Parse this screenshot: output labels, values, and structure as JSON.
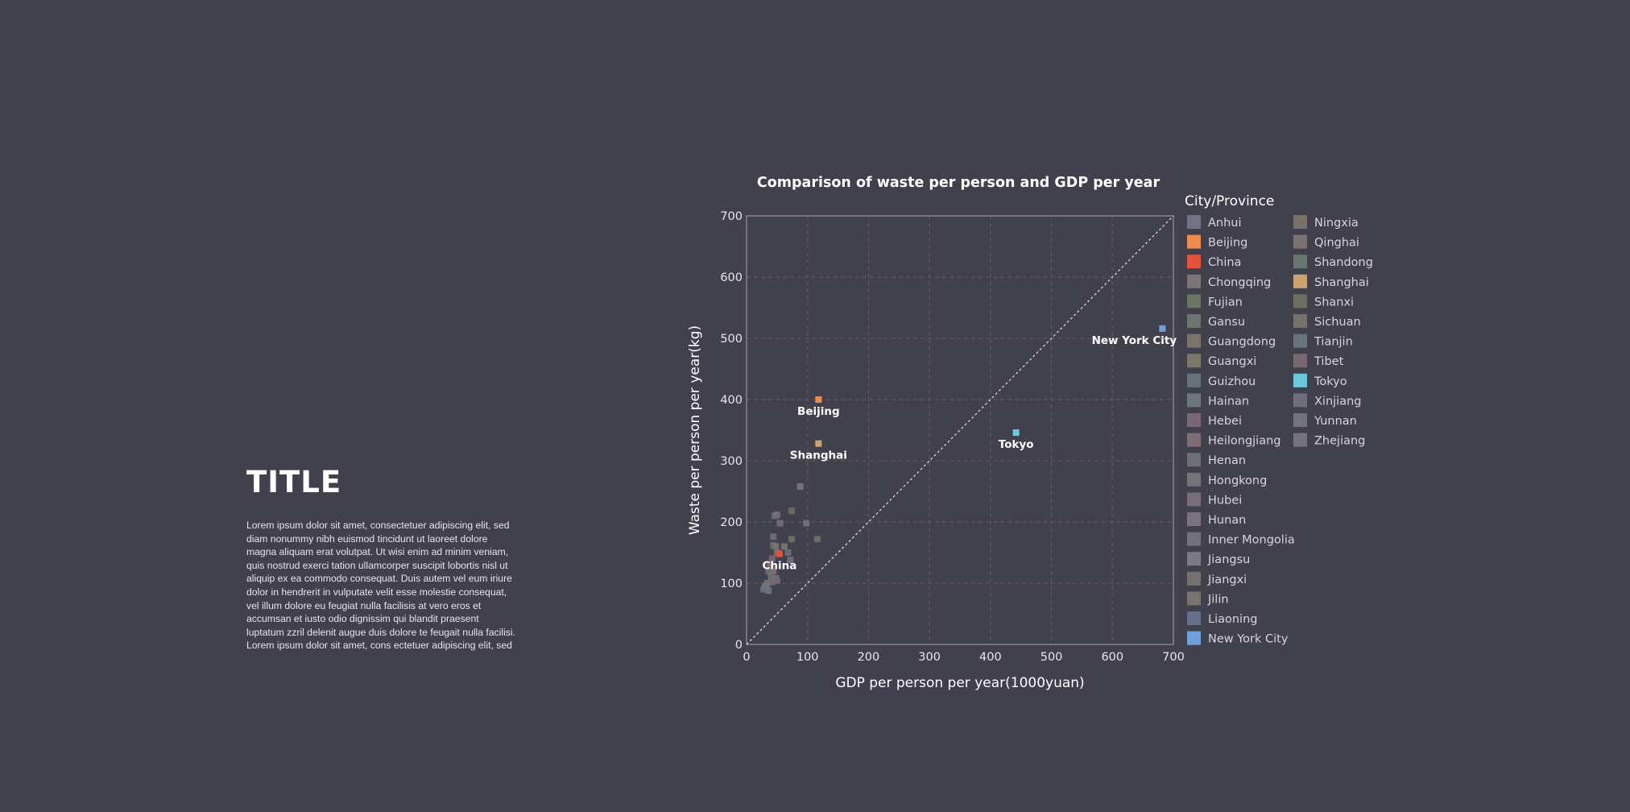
{
  "slide": {
    "title": "TITLE",
    "body": "Lorem ipsum dolor sit amet, consectetuer adipiscing elit, sed\ndiam nonummy nibh euismod tincidunt ut laoreet dolore\nmagna aliquam erat volutpat. Ut wisi enim ad minim veniam,\nquis nostrud exerci tation ullamcorper suscipit lobortis nisl ut\naliquip ex ea commodo consequat. Duis autem vel eum iriure\ndolor in hendrerit in vulputate velit esse molestie consequat,\nvel illum dolore eu feugiat nulla facilisis at vero eros et\naccumsan et iusto odio dignissim qui blandit praesent\nluptatum zzril delenit augue duis dolore te feugait nulla facilisi.\nLorem ipsum dolor sit amet, cons ectetuer adipiscing elit, sed"
  },
  "chart_data": {
    "type": "scatter",
    "title": "Comparison of waste per person and GDP per year",
    "xlabel": "GDP per person per year(1000yuan)",
    "ylabel": "Waste per person per year(kg)",
    "xlim": [
      0,
      700
    ],
    "ylim": [
      0,
      700
    ],
    "xticks": [
      0,
      100,
      200,
      300,
      400,
      500,
      600,
      700
    ],
    "yticks": [
      0,
      100,
      200,
      300,
      400,
      500,
      600,
      700
    ],
    "grid": true,
    "reference_line": "y = x",
    "legend_title": "City/Province",
    "legend_position": "right",
    "series": [
      {
        "name": "Anhui",
        "color": "#6f7385",
        "x": 36,
        "y": 88
      },
      {
        "name": "Beijing",
        "color": "#f08c4b",
        "x": 118,
        "y": 400,
        "label": "Beijing"
      },
      {
        "name": "China",
        "color": "#e4523a",
        "x": 54,
        "y": 148,
        "label": "China"
      },
      {
        "name": "Chongqing",
        "color": "#7b7576",
        "x": 48,
        "y": 160
      },
      {
        "name": "Fujian",
        "color": "#697465",
        "x": 74,
        "y": 172
      },
      {
        "name": "Gansu",
        "color": "#6d7570",
        "x": 30,
        "y": 94
      },
      {
        "name": "Guangdong",
        "color": "#7a746a",
        "x": 62,
        "y": 160
      },
      {
        "name": "Guangxi",
        "color": "#7b7769",
        "x": 34,
        "y": 100
      },
      {
        "name": "Guizhou",
        "color": "#65717b",
        "x": 28,
        "y": 90
      },
      {
        "name": "Hainan",
        "color": "#6c7579",
        "x": 40,
        "y": 110
      },
      {
        "name": "Hebei",
        "color": "#7a6773",
        "x": 42,
        "y": 140
      },
      {
        "name": "Heilongjiang",
        "color": "#7e6e74",
        "x": 38,
        "y": 130
      },
      {
        "name": "Henan",
        "color": "#6e6f76",
        "x": 42,
        "y": 102
      },
      {
        "name": "Hongkong",
        "color": "#737378",
        "x": 98,
        "y": 198
      },
      {
        "name": "Hubei",
        "color": "#7a6d7a",
        "x": 55,
        "y": 198
      },
      {
        "name": "Hunan",
        "color": "#7a7280",
        "x": 44,
        "y": 120
      },
      {
        "name": "Inner Mongolia",
        "color": "#75707f",
        "x": 72,
        "y": 138
      },
      {
        "name": "Jiangsu",
        "color": "#7c7984",
        "x": 88,
        "y": 258
      },
      {
        "name": "Jiangxi",
        "color": "#74716f",
        "x": 36,
        "y": 120
      },
      {
        "name": "Jilin",
        "color": "#767371",
        "x": 50,
        "y": 150
      },
      {
        "name": "Liaoning",
        "color": "#64708a",
        "x": 46,
        "y": 210
      },
      {
        "name": "New York City",
        "color": "#70a0da",
        "x": 682,
        "y": 516,
        "label": "New York City"
      },
      {
        "name": "Ningxia",
        "color": "#7a6f6a",
        "x": 44,
        "y": 162
      },
      {
        "name": "Qinghai",
        "color": "#7a7271",
        "x": 48,
        "y": 108
      },
      {
        "name": "Shandong",
        "color": "#687670",
        "x": 116,
        "y": 172
      },
      {
        "name": "Shanghai",
        "color": "#c9a46e",
        "x": 118,
        "y": 328,
        "label": "Shanghai"
      },
      {
        "name": "Shanxi",
        "color": "#6e6f60",
        "x": 74,
        "y": 218
      },
      {
        "name": "Sichuan",
        "color": "#76716b",
        "x": 40,
        "y": 128
      },
      {
        "name": "Tianjin",
        "color": "#68747a",
        "x": 68,
        "y": 150
      },
      {
        "name": "Tibet",
        "color": "#796670",
        "x": 50,
        "y": 104
      },
      {
        "name": "Tokyo",
        "color": "#6cc7d8",
        "x": 442,
        "y": 346,
        "label": "Tokyo"
      },
      {
        "name": "Xinjiang",
        "color": "#6e6d7b",
        "x": 44,
        "y": 176
      },
      {
        "name": "Yunnan",
        "color": "#71747c",
        "x": 32,
        "y": 96
      },
      {
        "name": "Zhejiang",
        "color": "#77707d",
        "x": 50,
        "y": 212
      }
    ]
  }
}
